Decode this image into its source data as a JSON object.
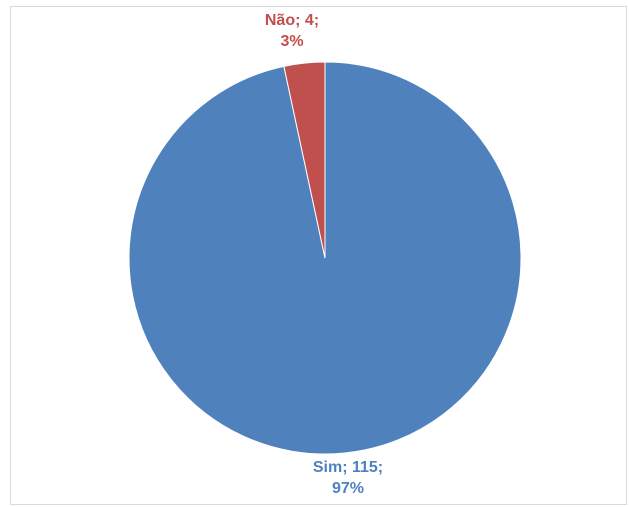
{
  "chart_data": {
    "type": "pie",
    "categories": [
      "Sim",
      "Não"
    ],
    "values": [
      115,
      4
    ],
    "percentages": [
      97,
      3
    ],
    "colors": [
      "#4f81bd",
      "#c0504d"
    ],
    "data_labels": [
      {
        "line1": "Sim; 115;",
        "line2": "97%"
      },
      {
        "line1": "Não; 4;",
        "line2": "3%"
      }
    ],
    "legend": "none",
    "title": ""
  }
}
